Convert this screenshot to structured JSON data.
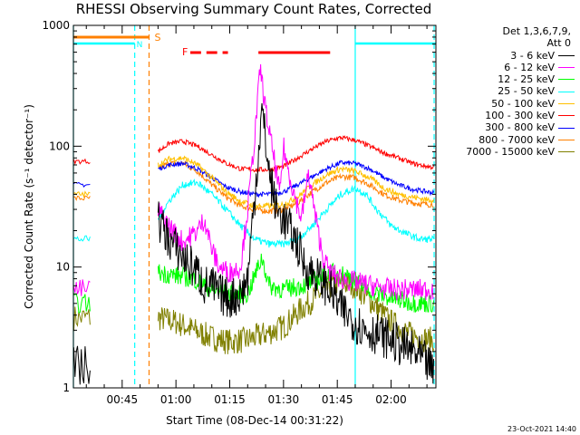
{
  "page_title": "RHESSI Observing Summary Count Rates, Corrected",
  "timestamp": "23-Oct-2021 14:40",
  "chart_data": {
    "type": "line",
    "title": "RHESSI Observing Summary Count Rates, Corrected",
    "xlabel": "Start Time (08-Dec-14 00:31:22)",
    "ylabel": "Corrected Count Rate (s⁻¹ detector⁻¹)",
    "yscale": "log",
    "ylim": [
      1,
      1000
    ],
    "xlim_minutes": [
      31.4,
      132.5
    ],
    "x_ticks": [
      {
        "minute": 45,
        "label": "00:45"
      },
      {
        "minute": 60,
        "label": "01:00"
      },
      {
        "minute": 75,
        "label": "01:15"
      },
      {
        "minute": 90,
        "label": "01:30"
      },
      {
        "minute": 105,
        "label": "01:45"
      },
      {
        "minute": 120,
        "label": "02:00"
      }
    ],
    "y_ticks": [
      {
        "value": 1,
        "label": "1"
      },
      {
        "value": 10,
        "label": "10"
      },
      {
        "value": 100,
        "label": "100"
      },
      {
        "value": 1000,
        "label": "1000"
      }
    ],
    "legend_header": [
      "Det 1,3,6,7,9,",
      "Att 0"
    ],
    "flags": [
      {
        "label": "S",
        "color": "#ff8000",
        "start": 31.4,
        "end": 52.5
      },
      {
        "label": "F",
        "color": "#ff0000",
        "segments": [
          [
            64,
            67
          ],
          [
            68.5,
            71.5
          ],
          [
            73,
            74.5
          ],
          [
            83,
            103
          ]
        ]
      }
    ],
    "flag_series": [
      {
        "color": "#00ffff",
        "segments": [
          [
            31.4,
            48.5
          ],
          [
            110,
            132.5
          ]
        ]
      }
    ],
    "vlines": [
      {
        "minute": 31.4,
        "color": "#00ffff",
        "style": "solid"
      },
      {
        "minute": 48.5,
        "color": "#00ffff",
        "style": "dashed"
      },
      {
        "minute": 52.5,
        "color": "#ff8000",
        "style": "dashed"
      },
      {
        "minute": 110,
        "color": "#00ffff",
        "style": "solid"
      },
      {
        "minute": 132,
        "color": "#00ffff",
        "style": "dashed"
      }
    ],
    "gap_minutes": [
      36.5,
      53.5
    ],
    "series": [
      {
        "name": "3 - 6 keV",
        "color": "#000000",
        "pre": [
          [
            31.5,
            1.5
          ],
          [
            36.3,
            1.5
          ]
        ],
        "points": [
          [
            55,
            25
          ],
          [
            58,
            17
          ],
          [
            62,
            12
          ],
          [
            66,
            9
          ],
          [
            68,
            7
          ],
          [
            70,
            7
          ],
          [
            72,
            6
          ],
          [
            75,
            5.5
          ],
          [
            78,
            6
          ],
          [
            80,
            8
          ],
          [
            82,
            40
          ],
          [
            84,
            200
          ],
          [
            86,
            60
          ],
          [
            88,
            30
          ],
          [
            90,
            25
          ],
          [
            92,
            20
          ],
          [
            94,
            15
          ],
          [
            96,
            10
          ],
          [
            100,
            8
          ],
          [
            103,
            6.5
          ],
          [
            106,
            4.5
          ],
          [
            108,
            4
          ],
          [
            110,
            3.5
          ],
          [
            113,
            3
          ],
          [
            116,
            2.8
          ],
          [
            120,
            2.5
          ],
          [
            123,
            2.2
          ],
          [
            126,
            2.0
          ],
          [
            130,
            1.6
          ],
          [
            132,
            1.3
          ]
        ]
      },
      {
        "name": "6 - 12 keV",
        "color": "#ff00ff",
        "pre": [
          [
            31.5,
            6.5
          ],
          [
            36.3,
            6.5
          ]
        ],
        "points": [
          [
            55,
            30
          ],
          [
            58,
            22
          ],
          [
            62,
            16
          ],
          [
            66,
            20
          ],
          [
            68,
            25
          ],
          [
            70,
            14
          ],
          [
            72,
            10
          ],
          [
            75,
            9
          ],
          [
            78,
            10
          ],
          [
            80,
            30
          ],
          [
            82,
            120
          ],
          [
            83.5,
            450
          ],
          [
            85,
            200
          ],
          [
            87,
            90
          ],
          [
            89,
            40
          ],
          [
            90,
            100
          ],
          [
            91,
            70
          ],
          [
            93,
            40
          ],
          [
            95,
            25
          ],
          [
            97,
            60
          ],
          [
            99,
            25
          ],
          [
            101,
            12
          ],
          [
            103,
            9
          ],
          [
            106,
            8
          ],
          [
            110,
            7.5
          ],
          [
            115,
            7
          ],
          [
            120,
            6.5
          ],
          [
            125,
            6.5
          ],
          [
            130,
            6.5
          ],
          [
            132,
            6.5
          ]
        ]
      },
      {
        "name": "12 - 25 keV",
        "color": "#00ff00",
        "pre": [
          [
            31.5,
            5.0
          ],
          [
            36.3,
            5.0
          ]
        ],
        "points": [
          [
            55,
            9
          ],
          [
            60,
            8.5
          ],
          [
            65,
            8
          ],
          [
            70,
            6.5
          ],
          [
            75,
            6
          ],
          [
            80,
            6
          ],
          [
            84,
            12
          ],
          [
            86,
            7
          ],
          [
            90,
            6.5
          ],
          [
            95,
            7
          ],
          [
            100,
            8
          ],
          [
            104,
            9
          ],
          [
            108,
            8.5
          ],
          [
            112,
            7
          ],
          [
            116,
            6
          ],
          [
            120,
            5.5
          ],
          [
            124,
            5.2
          ],
          [
            128,
            5.0
          ],
          [
            132,
            5.0
          ]
        ]
      },
      {
        "name": "25 - 50 keV",
        "color": "#00ffff",
        "pre": [
          [
            31.5,
            17
          ],
          [
            36.3,
            17
          ]
        ],
        "points": [
          [
            55,
            25
          ],
          [
            58,
            35
          ],
          [
            62,
            48
          ],
          [
            66,
            50
          ],
          [
            70,
            40
          ],
          [
            74,
            30
          ],
          [
            78,
            22
          ],
          [
            82,
            17
          ],
          [
            86,
            15.5
          ],
          [
            90,
            15.5
          ],
          [
            94,
            17
          ],
          [
            98,
            22
          ],
          [
            102,
            30
          ],
          [
            106,
            40
          ],
          [
            110,
            45
          ],
          [
            113,
            40
          ],
          [
            116,
            30
          ],
          [
            120,
            22
          ],
          [
            124,
            19
          ],
          [
            128,
            17
          ],
          [
            132,
            17
          ]
        ]
      },
      {
        "name": "50 - 100 keV",
        "color": "#ffc000",
        "pre": [
          [
            31.5,
            40
          ],
          [
            36.3,
            40
          ]
        ],
        "points": [
          [
            55,
            70
          ],
          [
            58,
            78
          ],
          [
            62,
            80
          ],
          [
            66,
            70
          ],
          [
            70,
            55
          ],
          [
            74,
            42
          ],
          [
            78,
            35
          ],
          [
            82,
            32
          ],
          [
            86,
            32
          ],
          [
            90,
            33
          ],
          [
            94,
            38
          ],
          [
            98,
            48
          ],
          [
            102,
            58
          ],
          [
            106,
            65
          ],
          [
            110,
            62
          ],
          [
            114,
            55
          ],
          [
            118,
            45
          ],
          [
            122,
            40
          ],
          [
            126,
            38
          ],
          [
            130,
            36
          ],
          [
            132,
            36
          ]
        ]
      },
      {
        "name": "100 - 300 keV",
        "color": "#ff0000",
        "pre": [
          [
            31.5,
            75
          ],
          [
            36.3,
            75
          ]
        ],
        "points": [
          [
            55,
            90
          ],
          [
            58,
            105
          ],
          [
            62,
            110
          ],
          [
            66,
            100
          ],
          [
            70,
            85
          ],
          [
            74,
            72
          ],
          [
            78,
            65
          ],
          [
            82,
            64
          ],
          [
            86,
            64
          ],
          [
            90,
            68
          ],
          [
            94,
            80
          ],
          [
            98,
            95
          ],
          [
            102,
            110
          ],
          [
            106,
            118
          ],
          [
            110,
            112
          ],
          [
            114,
            100
          ],
          [
            118,
            88
          ],
          [
            122,
            80
          ],
          [
            126,
            72
          ],
          [
            130,
            68
          ],
          [
            132,
            67
          ]
        ]
      },
      {
        "name": "300 - 800 keV",
        "color": "#0000ff",
        "pre": [
          [
            31.5,
            48
          ],
          [
            36.3,
            48
          ]
        ],
        "points": [
          [
            55,
            65
          ],
          [
            58,
            70
          ],
          [
            62,
            72
          ],
          [
            66,
            65
          ],
          [
            70,
            55
          ],
          [
            74,
            46
          ],
          [
            78,
            42
          ],
          [
            82,
            40
          ],
          [
            86,
            40
          ],
          [
            90,
            42
          ],
          [
            94,
            48
          ],
          [
            98,
            56
          ],
          [
            102,
            65
          ],
          [
            106,
            73
          ],
          [
            110,
            72
          ],
          [
            114,
            65
          ],
          [
            118,
            55
          ],
          [
            122,
            48
          ],
          [
            126,
            44
          ],
          [
            130,
            42
          ],
          [
            132,
            41
          ]
        ]
      },
      {
        "name": "800 - 7000 keV",
        "color": "#ff8000",
        "pre": [
          [
            31.5,
            37
          ],
          [
            36.3,
            37
          ]
        ],
        "points": [
          [
            55,
            65
          ],
          [
            58,
            72
          ],
          [
            62,
            72
          ],
          [
            66,
            62
          ],
          [
            70,
            48
          ],
          [
            74,
            38
          ],
          [
            78,
            32
          ],
          [
            82,
            30
          ],
          [
            86,
            29
          ],
          [
            90,
            30
          ],
          [
            94,
            34
          ],
          [
            98,
            42
          ],
          [
            102,
            50
          ],
          [
            106,
            56
          ],
          [
            110,
            55
          ],
          [
            114,
            48
          ],
          [
            118,
            40
          ],
          [
            122,
            36
          ],
          [
            126,
            34
          ],
          [
            130,
            33
          ],
          [
            132,
            33
          ]
        ]
      },
      {
        "name": "7000 - 15000 keV",
        "color": "#808000",
        "pre": [
          [
            31.5,
            3.8
          ],
          [
            36.3,
            3.8
          ]
        ],
        "points": [
          [
            55,
            3.8
          ],
          [
            60,
            3.5
          ],
          [
            65,
            3.0
          ],
          [
            70,
            2.6
          ],
          [
            75,
            2.4
          ],
          [
            80,
            2.5
          ],
          [
            85,
            2.8
          ],
          [
            90,
            3.2
          ],
          [
            95,
            4.5
          ],
          [
            100,
            6
          ],
          [
            105,
            7.5
          ],
          [
            110,
            7
          ],
          [
            115,
            5
          ],
          [
            120,
            3.5
          ],
          [
            125,
            2.8
          ],
          [
            130,
            2.5
          ],
          [
            132,
            2.5
          ]
        ]
      }
    ]
  }
}
